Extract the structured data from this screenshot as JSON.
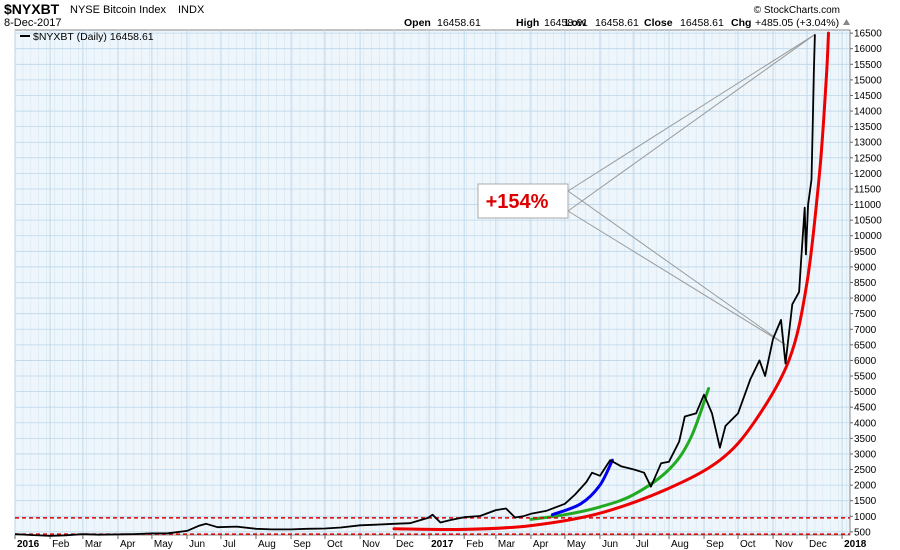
{
  "header": {
    "symbol": "$NYXBT",
    "name": "NYSE Bitcoin Index",
    "exchange": "INDX",
    "date": "8-Dec-2017",
    "copyright": "© StockCharts.com",
    "open_label": "Open",
    "open_value": "16458.61",
    "high_label": "High",
    "high_value": "16458.61",
    "low_label": "Low",
    "low_value": "16458.61",
    "close_label": "Close",
    "close_value": "16458.61",
    "chg_label": "Chg",
    "chg_value": "+485.05 (+3.04%)"
  },
  "legend": {
    "entry": "$NYXBT (Daily) 16458.61"
  },
  "annotation": {
    "label": "+154%",
    "color": "#dd0000"
  },
  "chart_data": {
    "type": "line",
    "title": "$NYXBT NYSE Bitcoin Index INDX",
    "x_range": [
      "2016-01-01",
      "2018-01-08"
    ],
    "ylim": [
      400,
      16600
    ],
    "y_ticks": [
      500,
      1000,
      1500,
      2000,
      2500,
      3000,
      3500,
      4000,
      4500,
      5000,
      5500,
      6000,
      6500,
      7000,
      7500,
      8000,
      8500,
      9000,
      9500,
      10000,
      10500,
      11000,
      11500,
      12000,
      12500,
      13000,
      13500,
      14000,
      14500,
      15000,
      15500,
      16000,
      16500
    ],
    "x_ticks": [
      {
        "label": "2016",
        "date": "2016-01-01",
        "bold": true
      },
      {
        "label": "Feb",
        "date": "2016-02-01"
      },
      {
        "label": "Mar",
        "date": "2016-03-01"
      },
      {
        "label": "Apr",
        "date": "2016-04-01"
      },
      {
        "label": "May",
        "date": "2016-05-01"
      },
      {
        "label": "Jun",
        "date": "2016-06-01"
      },
      {
        "label": "Jul",
        "date": "2016-07-01"
      },
      {
        "label": "Aug",
        "date": "2016-08-01"
      },
      {
        "label": "Sep",
        "date": "2016-09-01"
      },
      {
        "label": "Oct",
        "date": "2016-10-01"
      },
      {
        "label": "Nov",
        "date": "2016-11-01"
      },
      {
        "label": "Dec",
        "date": "2016-12-01"
      },
      {
        "label": "2017",
        "date": "2017-01-01",
        "bold": true
      },
      {
        "label": "Feb",
        "date": "2017-02-01"
      },
      {
        "label": "Mar",
        "date": "2017-03-01"
      },
      {
        "label": "Apr",
        "date": "2017-04-01"
      },
      {
        "label": "May",
        "date": "2017-05-01"
      },
      {
        "label": "Jun",
        "date": "2017-06-01"
      },
      {
        "label": "Jul",
        "date": "2017-07-01"
      },
      {
        "label": "Aug",
        "date": "2017-08-01"
      },
      {
        "label": "Sep",
        "date": "2017-09-01"
      },
      {
        "label": "Oct",
        "date": "2017-10-01"
      },
      {
        "label": "Nov",
        "date": "2017-11-01"
      },
      {
        "label": "Dec",
        "date": "2017-12-01"
      },
      {
        "label": "2018",
        "date": "2018-01-01",
        "bold": true
      }
    ],
    "grid": true,
    "legend_position": "top-left",
    "series": [
      {
        "name": "$NYXBT (Daily)",
        "color": "#000000",
        "points": [
          [
            "2016-01-01",
            430
          ],
          [
            "2016-01-15",
            400
          ],
          [
            "2016-02-01",
            370
          ],
          [
            "2016-02-15",
            390
          ],
          [
            "2016-03-01",
            430
          ],
          [
            "2016-03-15",
            410
          ],
          [
            "2016-04-01",
            420
          ],
          [
            "2016-04-15",
            430
          ],
          [
            "2016-05-01",
            450
          ],
          [
            "2016-05-15",
            455
          ],
          [
            "2016-06-01",
            530
          ],
          [
            "2016-06-12",
            700
          ],
          [
            "2016-06-18",
            760
          ],
          [
            "2016-06-28",
            650
          ],
          [
            "2016-07-15",
            670
          ],
          [
            "2016-08-01",
            600
          ],
          [
            "2016-08-15",
            580
          ],
          [
            "2016-09-01",
            580
          ],
          [
            "2016-09-15",
            600
          ],
          [
            "2016-10-01",
            610
          ],
          [
            "2016-10-15",
            640
          ],
          [
            "2016-11-01",
            710
          ],
          [
            "2016-11-15",
            730
          ],
          [
            "2016-12-01",
            760
          ],
          [
            "2016-12-15",
            780
          ],
          [
            "2016-12-31",
            950
          ],
          [
            "2017-01-04",
            1050
          ],
          [
            "2017-01-11",
            800
          ],
          [
            "2017-01-20",
            880
          ],
          [
            "2017-02-01",
            970
          ],
          [
            "2017-02-15",
            1010
          ],
          [
            "2017-03-01",
            1200
          ],
          [
            "2017-03-10",
            1250
          ],
          [
            "2017-03-18",
            960
          ],
          [
            "2017-03-25",
            1000
          ],
          [
            "2017-04-01",
            1080
          ],
          [
            "2017-04-15",
            1180
          ],
          [
            "2017-05-01",
            1400
          ],
          [
            "2017-05-10",
            1700
          ],
          [
            "2017-05-20",
            2100
          ],
          [
            "2017-05-25",
            2400
          ],
          [
            "2017-06-01",
            2300
          ],
          [
            "2017-06-10",
            2800
          ],
          [
            "2017-06-20",
            2600
          ],
          [
            "2017-07-01",
            2500
          ],
          [
            "2017-07-10",
            2400
          ],
          [
            "2017-07-16",
            1950
          ],
          [
            "2017-07-25",
            2700
          ],
          [
            "2017-08-01",
            2750
          ],
          [
            "2017-08-10",
            3400
          ],
          [
            "2017-08-15",
            4200
          ],
          [
            "2017-08-25",
            4300
          ],
          [
            "2017-09-01",
            4900
          ],
          [
            "2017-09-08",
            4300
          ],
          [
            "2017-09-15",
            3200
          ],
          [
            "2017-09-20",
            3900
          ],
          [
            "2017-10-01",
            4300
          ],
          [
            "2017-10-12",
            5400
          ],
          [
            "2017-10-20",
            6000
          ],
          [
            "2017-10-25",
            5500
          ],
          [
            "2017-11-01",
            6700
          ],
          [
            "2017-11-08",
            7300
          ],
          [
            "2017-11-12",
            5900
          ],
          [
            "2017-11-18",
            7800
          ],
          [
            "2017-11-24",
            8200
          ],
          [
            "2017-11-26",
            9300
          ],
          [
            "2017-11-29",
            10900
          ],
          [
            "2017-11-30",
            9400
          ],
          [
            "2017-12-02",
            11000
          ],
          [
            "2017-12-05",
            11800
          ],
          [
            "2017-12-06",
            13500
          ],
          [
            "2017-12-07",
            15200
          ],
          [
            "2017-12-08",
            16458.61
          ]
        ]
      }
    ],
    "annotations": [
      {
        "type": "curve",
        "color": "#ee0000",
        "points": [
          [
            "2016-12-01",
            600
          ],
          [
            "2017-02-01",
            580
          ],
          [
            "2017-04-01",
            700
          ],
          [
            "2017-06-01",
            1100
          ],
          [
            "2017-08-01",
            1900
          ],
          [
            "2017-09-15",
            2800
          ],
          [
            "2017-10-15",
            4000
          ],
          [
            "2017-11-15",
            6000
          ],
          [
            "2017-12-01",
            8500
          ],
          [
            "2017-12-12",
            12000
          ],
          [
            "2017-12-18",
            15000
          ],
          [
            "2017-12-20",
            16500
          ]
        ]
      },
      {
        "type": "curve",
        "color": "#22aa22",
        "points": [
          [
            "2017-04-01",
            900
          ],
          [
            "2017-05-01",
            1050
          ],
          [
            "2017-06-01",
            1300
          ],
          [
            "2017-07-01",
            1700
          ],
          [
            "2017-08-01",
            2500
          ],
          [
            "2017-08-20",
            3500
          ],
          [
            "2017-09-05",
            5100
          ]
        ]
      },
      {
        "type": "curve",
        "color": "#0000ee",
        "points": [
          [
            "2017-04-20",
            1050
          ],
          [
            "2017-05-15",
            1400
          ],
          [
            "2017-06-01",
            2000
          ],
          [
            "2017-06-12",
            2800
          ]
        ]
      },
      {
        "type": "hline",
        "value": 950,
        "color": "#dd0000",
        "dashed": true
      },
      {
        "type": "hline",
        "value": 430,
        "color": "#dd0000",
        "dashed": true
      },
      {
        "type": "callout",
        "text": "+154%",
        "box_anchor": [
          "2017-03-05",
          11500
        ],
        "pointers": [
          [
            "2017-12-08",
            16458.61
          ],
          [
            "2017-11-12",
            6500
          ]
        ]
      }
    ]
  }
}
